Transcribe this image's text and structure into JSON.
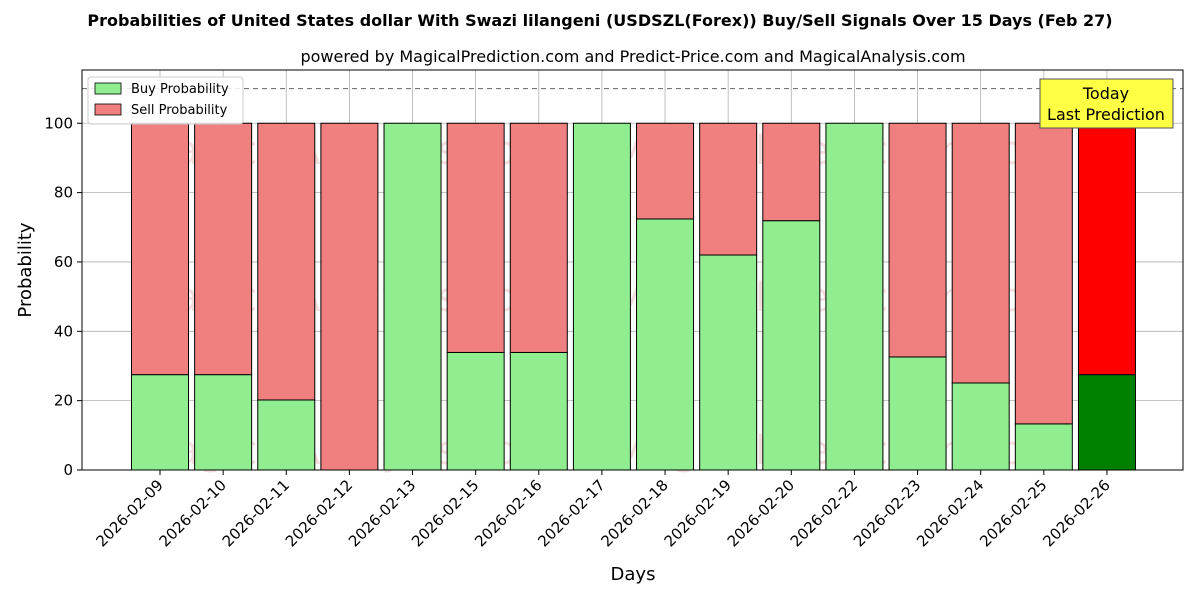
{
  "chart_data": {
    "type": "bar",
    "stacked": true,
    "title": "Probabilities of United States dollar With Swazi lilangeni (USDSZL(Forex)) Buy/Sell Signals Over 15 Days (Feb 27)",
    "subtitle": "powered by MagicalPrediction.com and Predict-Price.com and MagicalAnalysis.com",
    "xlabel": "Days",
    "ylabel": "Probability",
    "ylim": [
      0,
      115
    ],
    "yticks": [
      0,
      20,
      40,
      60,
      80,
      100
    ],
    "reference_line": 110,
    "grid": true,
    "legend_position": "top-left",
    "categories": [
      "2026-02-09",
      "2026-02-10",
      "2026-02-11",
      "2026-02-12",
      "2026-02-13",
      "2026-02-15",
      "2026-02-16",
      "2026-02-17",
      "2026-02-18",
      "2026-02-19",
      "2026-02-20",
      "2026-02-22",
      "2026-02-23",
      "2026-02-24",
      "2026-02-25",
      "2026-02-26"
    ],
    "series": [
      {
        "name": "Buy Probability",
        "color": "#90ee90",
        "highlight_color": "#008000",
        "values": [
          27.5,
          27.5,
          20.2,
          0,
          100,
          33.9,
          33.9,
          100,
          72.4,
          62,
          71.9,
          100,
          32.6,
          25.1,
          13.3,
          27.5
        ]
      },
      {
        "name": "Sell Probability",
        "color": "#f08080",
        "highlight_color": "#ff0000",
        "values": [
          72.5,
          72.5,
          79.8,
          100,
          0,
          66.1,
          66.1,
          0,
          27.6,
          38,
          28.1,
          0,
          67.4,
          74.9,
          86.7,
          72.5
        ]
      }
    ],
    "highlight_index": 15,
    "annotation": {
      "line1": "Today",
      "line2": "Last Prediction",
      "bg_color": "#ffff44"
    },
    "watermarks": [
      "MagicalAnalysis.com",
      "MagicalPrediction.com"
    ]
  }
}
